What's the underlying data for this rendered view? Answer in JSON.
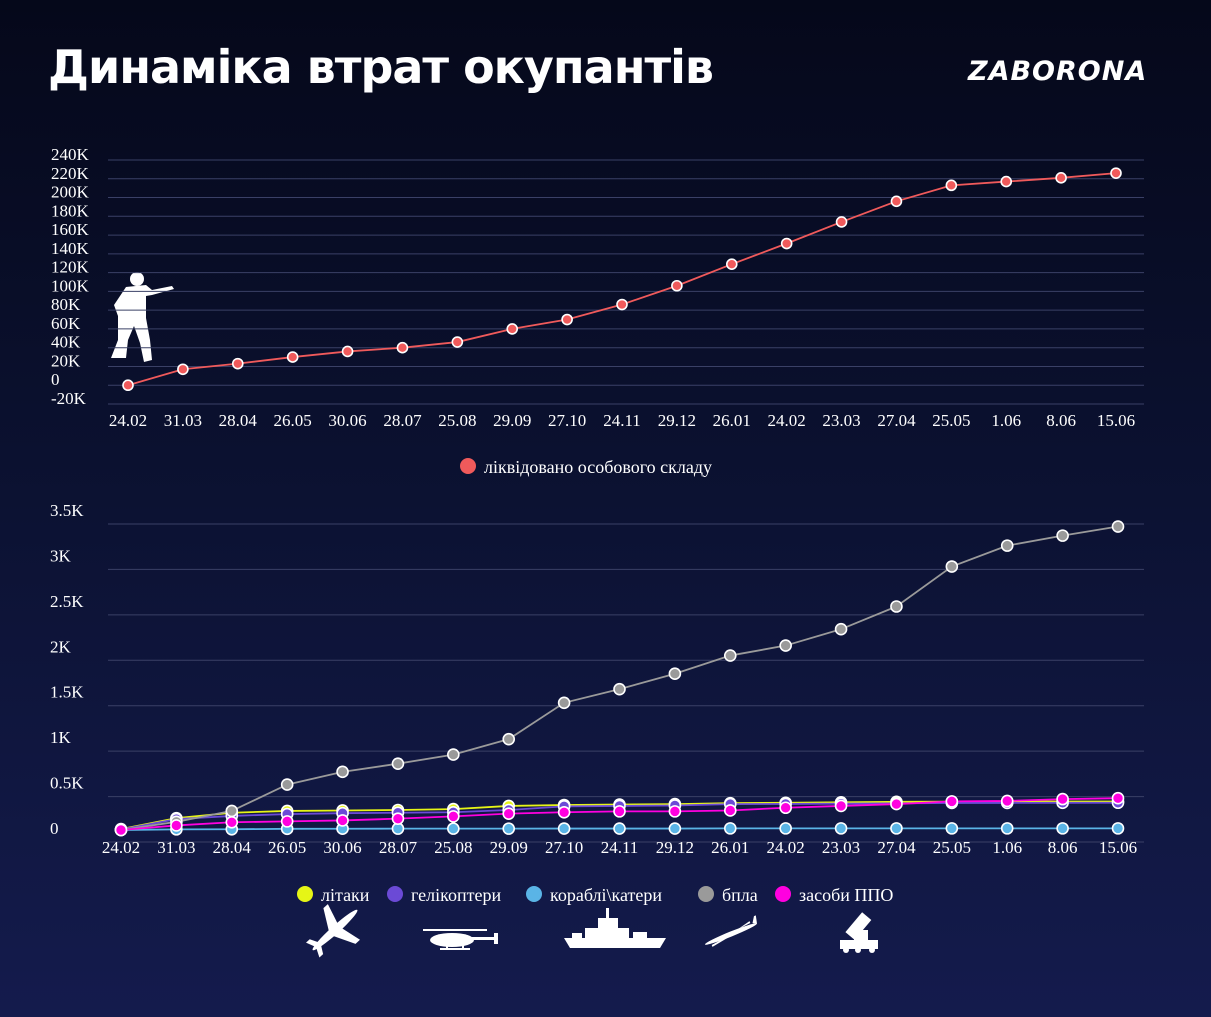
{
  "header": {
    "title": "Динаміка втрат окупантів",
    "brand": "ZABORONA"
  },
  "colors": {
    "background_top": "#05081a",
    "background_bottom": "#141b4d",
    "grid": "#3a4066",
    "personnel": "#f05a5b",
    "aircraft": "#e6f516",
    "helicopters": "#6b4ad6",
    "ships": "#5ab4e6",
    "drones": "#9a9a9a",
    "air_defense": "#ff00e0"
  },
  "icons": {
    "personnel": "soldier-icon",
    "aircraft": "plane-icon",
    "helicopters": "helicopter-icon",
    "ships": "warship-icon",
    "drones": "drone-icon",
    "air_defense": "air-defense-launcher-icon"
  },
  "chart_data": [
    {
      "type": "line",
      "categories": [
        "24.02",
        "31.03",
        "28.04",
        "26.05",
        "30.06",
        "28.07",
        "25.08",
        "29.09",
        "27.10",
        "24.11",
        "29.12",
        "26.01",
        "24.02",
        "23.03",
        "27.04",
        "25.05",
        "1.06",
        "8.06",
        "15.06"
      ],
      "yticks": [
        -20000,
        0,
        20000,
        40000,
        60000,
        80000,
        100000,
        120000,
        140000,
        160000,
        180000,
        200000,
        220000,
        240000
      ],
      "ytick_labels": [
        "-20K",
        "0",
        "20K",
        "40K",
        "60K",
        "80K",
        "100K",
        "120K",
        "140K",
        "160K",
        "180K",
        "200K",
        "220K",
        "240K"
      ],
      "ylim": [
        -20000,
        240000
      ],
      "grid": true,
      "legend_position": "bottom-center",
      "series": [
        {
          "name": "ліквідовано особового складу",
          "color": "#f05a5b",
          "values": [
            0,
            17000,
            23000,
            30000,
            36000,
            40000,
            46000,
            60000,
            70000,
            86000,
            106000,
            129000,
            151000,
            174000,
            196000,
            213000,
            217000,
            221000,
            226000
          ]
        }
      ]
    },
    {
      "type": "line",
      "categories": [
        "24.02",
        "31.03",
        "28.04",
        "26.05",
        "30.06",
        "28.07",
        "25.08",
        "29.09",
        "27.10",
        "24.11",
        "29.12",
        "26.01",
        "24.02",
        "23.03",
        "27.04",
        "25.05",
        "1.06",
        "8.06",
        "15.06"
      ],
      "yticks": [
        0,
        500,
        1000,
        1500,
        2000,
        2500,
        3000,
        3500
      ],
      "ytick_labels": [
        "0",
        "0.5K",
        "1K",
        "1.5K",
        "2K",
        "2.5K",
        "3K",
        "3.5K"
      ],
      "ylim": [
        0,
        3500
      ],
      "grid": true,
      "legend_position": "bottom-center",
      "series": [
        {
          "name": "літаки",
          "color": "#e6f516",
          "values": [
            10,
            130,
            190,
            210,
            215,
            220,
            230,
            265,
            275,
            280,
            285,
            295,
            300,
            305,
            310,
            312,
            313,
            314,
            314
          ]
        },
        {
          "name": "гелікоптери",
          "color": "#6b4ad6",
          "values": [
            5,
            120,
            155,
            175,
            185,
            190,
            195,
            220,
            260,
            265,
            270,
            285,
            287,
            290,
            293,
            298,
            298,
            299,
            300
          ]
        },
        {
          "name": "кораблі\\катери",
          "color": "#5ab4e6",
          "values": [
            0,
            7,
            8,
            13,
            14,
            15,
            15,
            15,
            16,
            16,
            16,
            18,
            18,
            18,
            18,
            18,
            18,
            18,
            18
          ]
        },
        {
          "name": "бпла",
          "color": "#9a9a9a",
          "values": [
            0,
            90,
            210,
            500,
            640,
            730,
            830,
            1000,
            1400,
            1550,
            1720,
            1920,
            2030,
            2210,
            2460,
            2900,
            3130,
            3240,
            3340
          ]
        },
        {
          "name": "засоби ППО",
          "color": "#ff00e0",
          "values": [
            0,
            50,
            85,
            95,
            105,
            125,
            150,
            180,
            195,
            205,
            205,
            215,
            245,
            265,
            285,
            315,
            320,
            340,
            350
          ]
        }
      ]
    }
  ]
}
